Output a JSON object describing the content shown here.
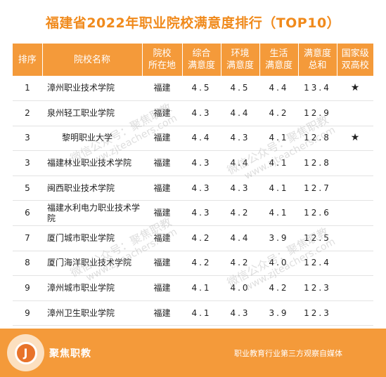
{
  "title": "福建省2022年职业院校满意度排行（TOP10）",
  "header": {
    "rank": "排序",
    "name": "院校名称",
    "location_line1": "院校",
    "location_line2": "所在地",
    "overall_line1": "综合",
    "overall_line2": "满意度",
    "env_line1": "环境",
    "env_line2": "满意度",
    "life_line1": "生活",
    "life_line2": "满意度",
    "total_line1": "满意度",
    "total_line2": "总和",
    "dual_line1": "国家级",
    "dual_line2": "双高校"
  },
  "rows": [
    {
      "rank": "1",
      "name": "漳州职业技术学院",
      "location": "福建",
      "overall": "4.5",
      "env": "4.5",
      "life": "4.4",
      "total": "13.4",
      "dual": "★"
    },
    {
      "rank": "2",
      "name": "泉州轻工职业学院",
      "location": "福建",
      "overall": "4.3",
      "env": "4.4",
      "life": "4.2",
      "total": "12.9",
      "dual": ""
    },
    {
      "rank": "3",
      "name": "黎明职业大学",
      "location": "福建",
      "overall": "4.4",
      "env": "4.3",
      "life": "4.1",
      "total": "12.8",
      "dual": "★"
    },
    {
      "rank": "3",
      "name": "福建林业职业技术学院",
      "location": "福建",
      "overall": "4.3",
      "env": "4.4",
      "life": "4.1",
      "total": "12.8",
      "dual": ""
    },
    {
      "rank": "5",
      "name": "闽西职业技术学院",
      "location": "福建",
      "overall": "4.3",
      "env": "4.3",
      "life": "4.1",
      "total": "12.7",
      "dual": ""
    },
    {
      "rank": "6",
      "name": "福建水利电力职业技术学院",
      "location": "福建",
      "overall": "4.3",
      "env": "4.2",
      "life": "4.1",
      "total": "12.6",
      "dual": ""
    },
    {
      "rank": "7",
      "name": "厦门城市职业学院",
      "location": "福建",
      "overall": "4.2",
      "env": "4.4",
      "life": "3.9",
      "total": "12.5",
      "dual": ""
    },
    {
      "rank": "8",
      "name": "厦门海洋职业技术学院",
      "location": "福建",
      "overall": "4.2",
      "env": "4.2",
      "life": "4.0",
      "total": "12.4",
      "dual": ""
    },
    {
      "rank": "9",
      "name": "漳州城市职业学院",
      "location": "福建",
      "overall": "4.1",
      "env": "4.0",
      "life": "4.2",
      "total": "12.3",
      "dual": ""
    },
    {
      "rank": "9",
      "name": "漳州卫生职业学院",
      "location": "福建",
      "overall": "4.1",
      "env": "4.3",
      "life": "3.9",
      "total": "12.3",
      "dual": ""
    }
  ],
  "footer": {
    "logo_letter": "J",
    "brand": "聚焦职教",
    "tagline": "职业教育行业第三方观察自媒体"
  },
  "watermark": {
    "text": "微信公众号：聚焦职教",
    "url": "www.zjteachers.com"
  },
  "colors": {
    "accent": "#f49a3a",
    "title": "#f08a1c"
  }
}
